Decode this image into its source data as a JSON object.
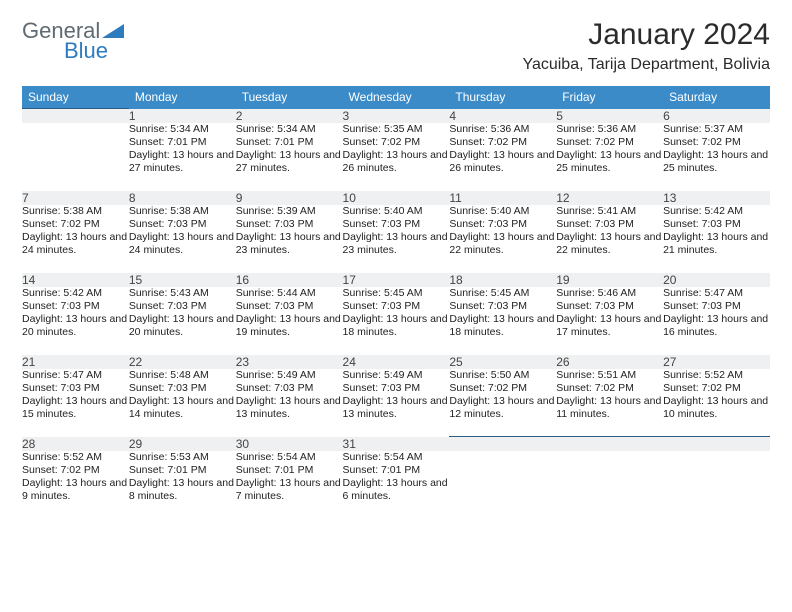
{
  "brand": {
    "part1": "General",
    "part2": "Blue"
  },
  "title": "January 2024",
  "location": "Yacuiba, Tarija Department, Bolivia",
  "colors": {
    "header_bg": "#3b8bc8",
    "header_text": "#ffffff",
    "daynum_bg": "#eef0f1",
    "rule": "#2e5e84",
    "brand_gray": "#5f6a72",
    "brand_blue": "#2e7bbf"
  },
  "weekdays": [
    "Sunday",
    "Monday",
    "Tuesday",
    "Wednesday",
    "Thursday",
    "Friday",
    "Saturday"
  ],
  "weeks": [
    {
      "nums": [
        "",
        "1",
        "2",
        "3",
        "4",
        "5",
        "6"
      ],
      "cells": [
        null,
        {
          "sunrise": "Sunrise: 5:34 AM",
          "sunset": "Sunset: 7:01 PM",
          "daylight": "Daylight: 13 hours and 27 minutes."
        },
        {
          "sunrise": "Sunrise: 5:34 AM",
          "sunset": "Sunset: 7:01 PM",
          "daylight": "Daylight: 13 hours and 27 minutes."
        },
        {
          "sunrise": "Sunrise: 5:35 AM",
          "sunset": "Sunset: 7:02 PM",
          "daylight": "Daylight: 13 hours and 26 minutes."
        },
        {
          "sunrise": "Sunrise: 5:36 AM",
          "sunset": "Sunset: 7:02 PM",
          "daylight": "Daylight: 13 hours and 26 minutes."
        },
        {
          "sunrise": "Sunrise: 5:36 AM",
          "sunset": "Sunset: 7:02 PM",
          "daylight": "Daylight: 13 hours and 25 minutes."
        },
        {
          "sunrise": "Sunrise: 5:37 AM",
          "sunset": "Sunset: 7:02 PM",
          "daylight": "Daylight: 13 hours and 25 minutes."
        }
      ]
    },
    {
      "nums": [
        "7",
        "8",
        "9",
        "10",
        "11",
        "12",
        "13"
      ],
      "cells": [
        {
          "sunrise": "Sunrise: 5:38 AM",
          "sunset": "Sunset: 7:02 PM",
          "daylight": "Daylight: 13 hours and 24 minutes."
        },
        {
          "sunrise": "Sunrise: 5:38 AM",
          "sunset": "Sunset: 7:03 PM",
          "daylight": "Daylight: 13 hours and 24 minutes."
        },
        {
          "sunrise": "Sunrise: 5:39 AM",
          "sunset": "Sunset: 7:03 PM",
          "daylight": "Daylight: 13 hours and 23 minutes."
        },
        {
          "sunrise": "Sunrise: 5:40 AM",
          "sunset": "Sunset: 7:03 PM",
          "daylight": "Daylight: 13 hours and 23 minutes."
        },
        {
          "sunrise": "Sunrise: 5:40 AM",
          "sunset": "Sunset: 7:03 PM",
          "daylight": "Daylight: 13 hours and 22 minutes."
        },
        {
          "sunrise": "Sunrise: 5:41 AM",
          "sunset": "Sunset: 7:03 PM",
          "daylight": "Daylight: 13 hours and 22 minutes."
        },
        {
          "sunrise": "Sunrise: 5:42 AM",
          "sunset": "Sunset: 7:03 PM",
          "daylight": "Daylight: 13 hours and 21 minutes."
        }
      ]
    },
    {
      "nums": [
        "14",
        "15",
        "16",
        "17",
        "18",
        "19",
        "20"
      ],
      "cells": [
        {
          "sunrise": "Sunrise: 5:42 AM",
          "sunset": "Sunset: 7:03 PM",
          "daylight": "Daylight: 13 hours and 20 minutes."
        },
        {
          "sunrise": "Sunrise: 5:43 AM",
          "sunset": "Sunset: 7:03 PM",
          "daylight": "Daylight: 13 hours and 20 minutes."
        },
        {
          "sunrise": "Sunrise: 5:44 AM",
          "sunset": "Sunset: 7:03 PM",
          "daylight": "Daylight: 13 hours and 19 minutes."
        },
        {
          "sunrise": "Sunrise: 5:45 AM",
          "sunset": "Sunset: 7:03 PM",
          "daylight": "Daylight: 13 hours and 18 minutes."
        },
        {
          "sunrise": "Sunrise: 5:45 AM",
          "sunset": "Sunset: 7:03 PM",
          "daylight": "Daylight: 13 hours and 18 minutes."
        },
        {
          "sunrise": "Sunrise: 5:46 AM",
          "sunset": "Sunset: 7:03 PM",
          "daylight": "Daylight: 13 hours and 17 minutes."
        },
        {
          "sunrise": "Sunrise: 5:47 AM",
          "sunset": "Sunset: 7:03 PM",
          "daylight": "Daylight: 13 hours and 16 minutes."
        }
      ]
    },
    {
      "nums": [
        "21",
        "22",
        "23",
        "24",
        "25",
        "26",
        "27"
      ],
      "cells": [
        {
          "sunrise": "Sunrise: 5:47 AM",
          "sunset": "Sunset: 7:03 PM",
          "daylight": "Daylight: 13 hours and 15 minutes."
        },
        {
          "sunrise": "Sunrise: 5:48 AM",
          "sunset": "Sunset: 7:03 PM",
          "daylight": "Daylight: 13 hours and 14 minutes."
        },
        {
          "sunrise": "Sunrise: 5:49 AM",
          "sunset": "Sunset: 7:03 PM",
          "daylight": "Daylight: 13 hours and 13 minutes."
        },
        {
          "sunrise": "Sunrise: 5:49 AM",
          "sunset": "Sunset: 7:03 PM",
          "daylight": "Daylight: 13 hours and 13 minutes."
        },
        {
          "sunrise": "Sunrise: 5:50 AM",
          "sunset": "Sunset: 7:02 PM",
          "daylight": "Daylight: 13 hours and 12 minutes."
        },
        {
          "sunrise": "Sunrise: 5:51 AM",
          "sunset": "Sunset: 7:02 PM",
          "daylight": "Daylight: 13 hours and 11 minutes."
        },
        {
          "sunrise": "Sunrise: 5:52 AM",
          "sunset": "Sunset: 7:02 PM",
          "daylight": "Daylight: 13 hours and 10 minutes."
        }
      ]
    },
    {
      "nums": [
        "28",
        "29",
        "30",
        "31",
        "",
        "",
        ""
      ],
      "cells": [
        {
          "sunrise": "Sunrise: 5:52 AM",
          "sunset": "Sunset: 7:02 PM",
          "daylight": "Daylight: 13 hours and 9 minutes."
        },
        {
          "sunrise": "Sunrise: 5:53 AM",
          "sunset": "Sunset: 7:01 PM",
          "daylight": "Daylight: 13 hours and 8 minutes."
        },
        {
          "sunrise": "Sunrise: 5:54 AM",
          "sunset": "Sunset: 7:01 PM",
          "daylight": "Daylight: 13 hours and 7 minutes."
        },
        {
          "sunrise": "Sunrise: 5:54 AM",
          "sunset": "Sunset: 7:01 PM",
          "daylight": "Daylight: 13 hours and 6 minutes."
        },
        null,
        null,
        null
      ]
    }
  ]
}
